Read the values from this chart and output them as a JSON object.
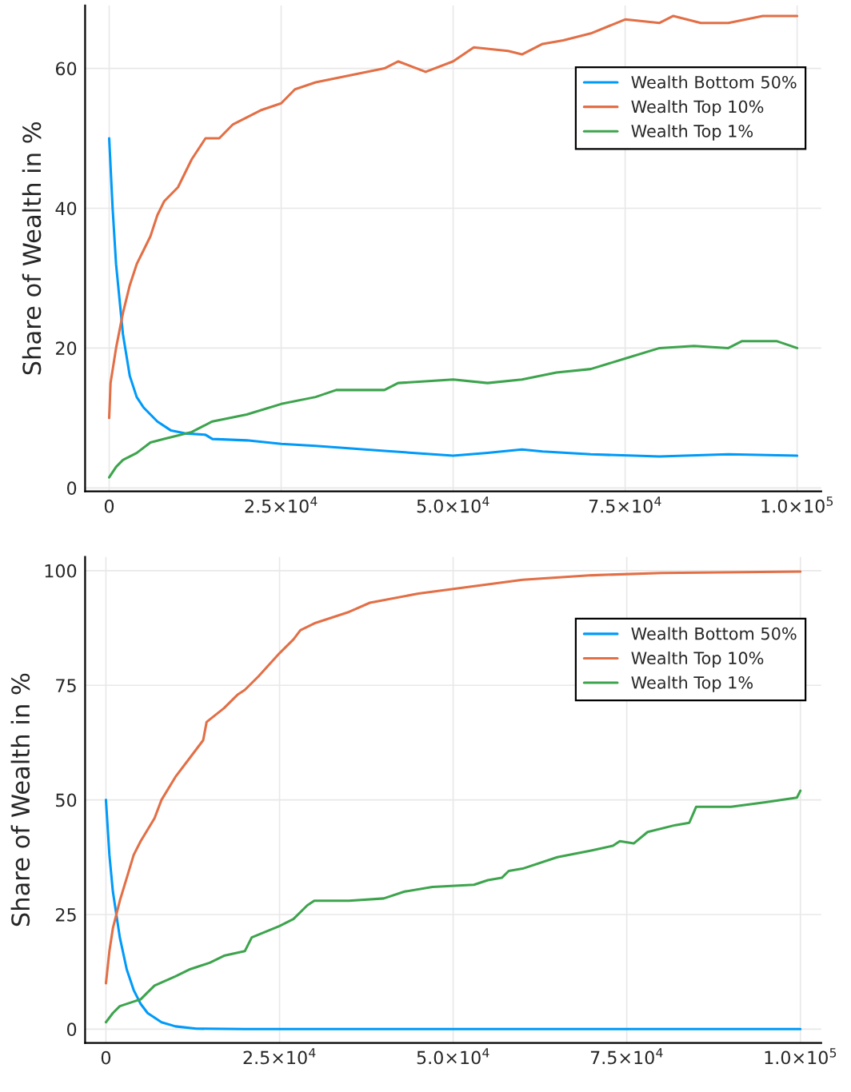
{
  "chart_data": [
    {
      "type": "line",
      "ylabel": "Share of Wealth in %",
      "xlim": [
        -3500,
        103500
      ],
      "ylim": [
        -0.5,
        69
      ],
      "xticks": [
        {
          "value": 0,
          "label": "0"
        },
        {
          "value": 25000,
          "label": "2.5×10$^{4}$"
        },
        {
          "value": 50000,
          "label": "5.0×10$^{4}$"
        },
        {
          "value": 75000,
          "label": "7.5×10$^{4}$"
        },
        {
          "value": 100000,
          "label": "1.0×10$^{5}$"
        }
      ],
      "yticks": [
        0,
        20,
        40,
        60
      ],
      "grid": true,
      "legend": "top right",
      "series": [
        {
          "name": "Wealth Bottom 50%",
          "color": "#009af9",
          "x": [
            0,
            500,
            1000,
            2000,
            3000,
            4000,
            5000,
            7000,
            9000,
            11000,
            14000,
            15000,
            20000,
            25000,
            30000,
            40000,
            50000,
            55000,
            60000,
            63000,
            70000,
            80000,
            90000,
            100000
          ],
          "values": [
            50,
            40,
            32,
            22,
            16,
            13,
            11.5,
            9.5,
            8.2,
            7.8,
            7.6,
            7,
            6.8,
            6.3,
            6,
            5.3,
            4.6,
            5,
            5.5,
            5.2,
            4.8,
            4.5,
            4.8,
            4.6
          ]
        },
        {
          "name": "Wealth Top 10%",
          "color": "#e26f46",
          "x": [
            0,
            200,
            1000,
            2000,
            3000,
            4000,
            5000,
            6000,
            7000,
            8000,
            10000,
            12000,
            14000,
            16000,
            18000,
            20000,
            22000,
            25000,
            27000,
            30000,
            35000,
            40000,
            42000,
            46000,
            50000,
            53000,
            58000,
            60000,
            63000,
            66000,
            70000,
            75000,
            80000,
            82000,
            86000,
            90000,
            95000,
            100000
          ],
          "values": [
            10,
            15,
            20,
            25,
            29,
            32,
            34,
            36,
            39,
            41,
            43,
            47,
            50,
            50,
            52,
            53,
            54,
            55,
            57,
            58,
            59,
            60,
            61,
            59.5,
            61,
            63,
            62.5,
            62,
            63.5,
            64,
            65,
            67,
            66.5,
            67.5,
            66.5,
            66.5,
            67.5,
            67.5
          ]
        },
        {
          "name": "Wealth Top 1%",
          "color": "#3da44d",
          "x": [
            0,
            1000,
            2000,
            4000,
            6000,
            8000,
            10000,
            12000,
            15000,
            20000,
            25000,
            30000,
            33000,
            40000,
            42000,
            50000,
            55000,
            60000,
            65000,
            70000,
            75000,
            80000,
            85000,
            90000,
            92000,
            97000,
            100000
          ],
          "values": [
            1.5,
            3,
            4,
            5,
            6.5,
            7,
            7.5,
            8,
            9.5,
            10.5,
            12,
            13,
            14,
            14,
            15,
            15.5,
            15,
            15.5,
            16.5,
            17,
            18.5,
            20,
            20.3,
            20,
            21,
            21,
            20
          ]
        }
      ]
    },
    {
      "type": "line",
      "ylabel": "Share of Wealth in %",
      "xlim": [
        -3000,
        103000
      ],
      "ylim": [
        -3,
        103
      ],
      "xticks": [
        {
          "value": 0,
          "label": "0"
        },
        {
          "value": 25000,
          "label": "2.5×10$^{4}$"
        },
        {
          "value": 50000,
          "label": "5.0×10$^{4}$"
        },
        {
          "value": 75000,
          "label": "7.5×10$^{4}$"
        },
        {
          "value": 100000,
          "label": "1.0×10$^{5}$"
        }
      ],
      "yticks": [
        0,
        25,
        50,
        75,
        100
      ],
      "grid": true,
      "legend": "top right",
      "series": [
        {
          "name": "Wealth Bottom 50%",
          "color": "#009af9",
          "x": [
            0,
            500,
            1000,
            2000,
            3000,
            4000,
            5000,
            6000,
            8000,
            10000,
            13000,
            20000,
            100000
          ],
          "values": [
            50,
            38,
            30,
            20,
            13,
            8.5,
            5.5,
            3.5,
            1.5,
            0.6,
            0.1,
            0,
            0
          ]
        },
        {
          "name": "Wealth Top 10%",
          "color": "#e26f46",
          "x": [
            0,
            500,
            1000,
            2000,
            3000,
            4000,
            5000,
            7000,
            8000,
            10000,
            12000,
            14000,
            14500,
            17000,
            19000,
            20000,
            22000,
            25000,
            27000,
            28000,
            30000,
            35000,
            38000,
            45000,
            50000,
            55000,
            60000,
            70000,
            80000,
            100000
          ],
          "values": [
            10,
            17,
            22,
            28,
            33,
            38,
            41,
            46,
            50,
            55,
            59,
            63,
            67,
            70,
            73,
            74,
            77,
            82,
            85,
            87,
            88.5,
            91,
            93,
            95,
            96,
            97,
            98,
            99,
            99.5,
            99.8
          ]
        },
        {
          "name": "Wealth Top 1%",
          "color": "#3da44d",
          "x": [
            0,
            1000,
            2000,
            4000,
            5000,
            6000,
            7000,
            10000,
            12000,
            15000,
            17000,
            20000,
            21000,
            25000,
            27000,
            29000,
            30000,
            35000,
            40000,
            43000,
            47000,
            53000,
            55000,
            57000,
            58000,
            60000,
            65000,
            70000,
            73000,
            74000,
            76000,
            78000,
            82000,
            84000,
            85000,
            90000,
            95000,
            99500,
            100000
          ],
          "values": [
            1.5,
            3.5,
            5,
            6,
            6.5,
            8,
            9.5,
            11.5,
            13,
            14.5,
            16,
            17,
            20,
            22.5,
            24,
            27,
            28,
            28,
            28.5,
            30,
            31,
            31.5,
            32.5,
            33,
            34.5,
            35,
            37.5,
            39,
            40,
            41,
            40.5,
            43,
            44.5,
            45,
            48.5,
            48.5,
            49.5,
            50.5,
            52
          ]
        }
      ]
    }
  ]
}
